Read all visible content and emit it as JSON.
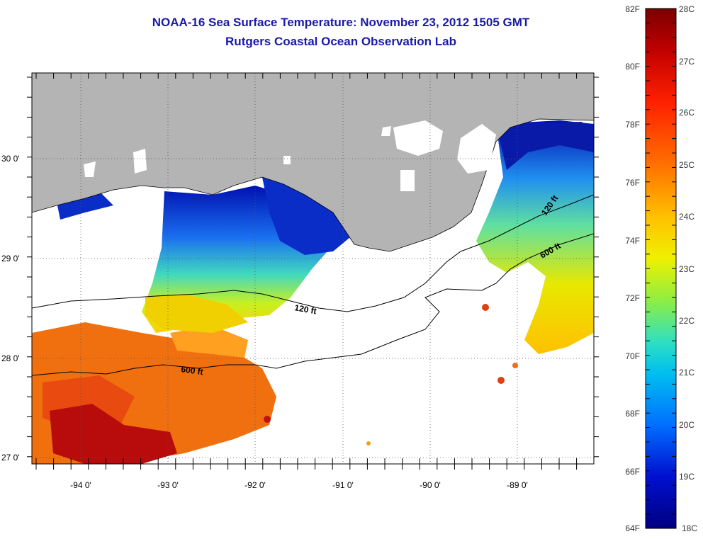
{
  "title": {
    "line1": "NOAA-16 Sea Surface Temperature:  November 23, 2012 1505 GMT",
    "line2": "Rutgers Coastal Ocean Observation Lab"
  },
  "map": {
    "lat_labels": [
      "30 0'",
      "29 0'",
      "28 0'",
      "27 0'"
    ],
    "lon_labels": [
      "-94 0'",
      "-93 0'",
      "-92 0'",
      "-91 0'",
      "-90 0'",
      "-89 0'"
    ],
    "contours": {
      "shallow": "120 ft",
      "deep": "600 ft"
    },
    "colors": {
      "land": "#b4b4b4",
      "cloud": "#ffffff",
      "frame": "#000000"
    }
  },
  "colorbar": {
    "fahrenheit_labels": [
      "82F",
      "80F",
      "78F",
      "76F",
      "74F",
      "72F",
      "70F",
      "68F",
      "66F",
      "64F"
    ],
    "celsius_labels": [
      "28C",
      "27C",
      "26C",
      "25C",
      "24C",
      "23C",
      "22C",
      "21C",
      "20C",
      "19C",
      "18C"
    ],
    "stops": [
      "#7a0000",
      "#d40000",
      "#ff2a00",
      "#ff7a00",
      "#ffc000",
      "#f2f200",
      "#a8f040",
      "#40e0b0",
      "#00c8f0",
      "#0080ff",
      "#0020e0",
      "#000090"
    ]
  }
}
